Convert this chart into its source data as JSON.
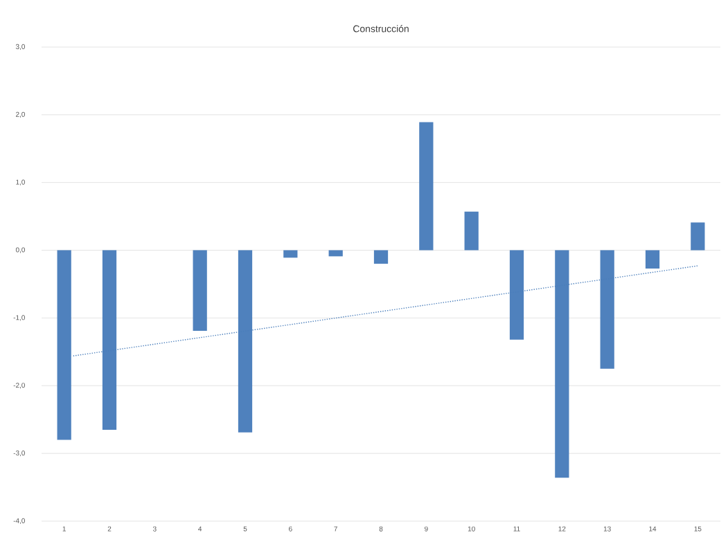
{
  "chart_data": {
    "type": "bar",
    "title": "Construcción",
    "x": [
      1,
      2,
      3,
      4,
      5,
      6,
      7,
      8,
      9,
      10,
      11,
      12,
      13,
      14,
      15
    ],
    "series": [
      {
        "color": "#4f81bd",
        "values": [
          -2.8,
          -2.65,
          0,
          -1.19,
          -2.69,
          -0.11,
          -0.09,
          -0.2,
          1.89,
          0.57,
          -1.32,
          -3.36,
          -1.75,
          -0.27,
          0.41
        ]
      },
      {
        "type": "line",
        "color": "#4a7ebb",
        "line_style": "dotted",
        "x": [
          1.2,
          15
        ],
        "values": [
          -1.56,
          -0.23
        ]
      }
    ],
    "xlim": [
      0.5,
      15.5
    ],
    "xticks": [
      1,
      2,
      3,
      4,
      5,
      6,
      7,
      8,
      9,
      10,
      11,
      12,
      13,
      14,
      15
    ],
    "ylim": [
      -4,
      3
    ],
    "yticks": [
      {
        "value": -4,
        "label": "-4,0"
      },
      {
        "value": -3,
        "label": "-3,0"
      },
      {
        "value": -2,
        "label": "-2,0"
      },
      {
        "value": -1,
        "label": "-1,0"
      },
      {
        "value": 0,
        "label": "0,0"
      },
      {
        "value": 1,
        "label": "1,0"
      },
      {
        "value": 2,
        "label": "2,0"
      },
      {
        "value": 3,
        "label": "3,0"
      }
    ],
    "grid": "y",
    "marker": "none"
  }
}
